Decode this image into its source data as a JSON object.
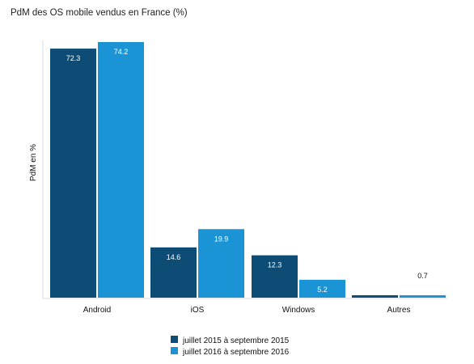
{
  "chart_data": {
    "type": "bar",
    "title": "PdM des OS mobile vendus en France (%)",
    "xlabel": "",
    "ylabel": "PdM en %",
    "categories": [
      "Android",
      "iOS",
      "Windows",
      "Autres"
    ],
    "series": [
      {
        "name": "juillet 2015 à septembre 2015",
        "color": "#0d4c74",
        "values": [
          72.3,
          14.6,
          12.3,
          0.7
        ],
        "labels": [
          "72.3",
          "14.6",
          "12.3",
          ""
        ]
      },
      {
        "name": "juillet 2016 à septembre 2016",
        "color": "#1b94d6",
        "values": [
          74.2,
          19.9,
          5.2,
          0.7
        ],
        "labels": [
          "74.2",
          "19.9",
          "5.2",
          "0.7"
        ]
      }
    ],
    "ylim": [
      0,
      74.2
    ],
    "grid": false,
    "legend": "bottom-center"
  }
}
